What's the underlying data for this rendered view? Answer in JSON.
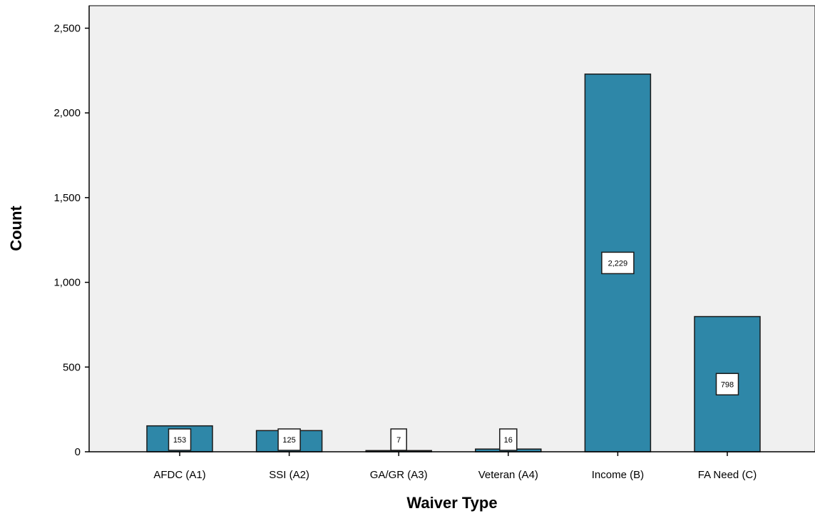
{
  "chart_data": {
    "type": "bar",
    "xlabel": "Waiver Type",
    "ylabel": "Count",
    "categories": [
      "AFDC (A1)",
      "SSI (A2)",
      "GA/GR (A3)",
      "Veteran (A4)",
      "Income (B)",
      "FA Need (C)"
    ],
    "values": [
      153,
      125,
      7,
      16,
      2229,
      798
    ],
    "data_labels": [
      "153",
      "125",
      "7",
      "16",
      "2,229",
      "798"
    ],
    "ylim": [
      0,
      2600
    ],
    "yticks": [
      0,
      500,
      1000,
      1500,
      2000,
      2500
    ],
    "ytick_labels": [
      "0",
      "500",
      "1,000",
      "1,500",
      "2,000",
      "2,500"
    ],
    "grid": false,
    "legend": "none",
    "colors": {
      "bar_fill": "#2E87A8",
      "bar_stroke": "#1a1a1a",
      "plot_background": "#F0F0F0",
      "axis": "#000000",
      "label_box_fill": "#FFFFFF"
    }
  }
}
